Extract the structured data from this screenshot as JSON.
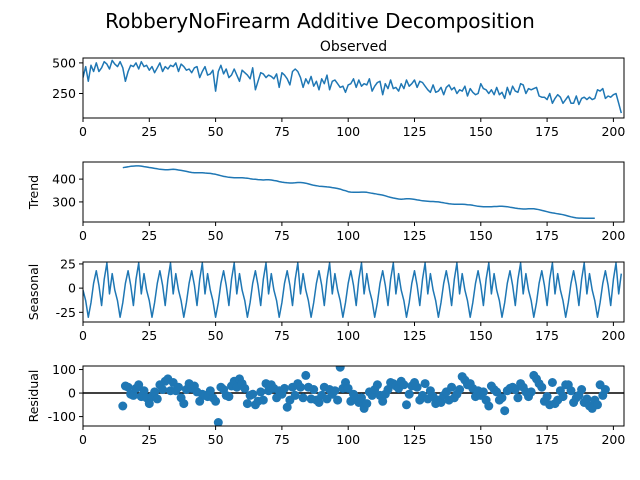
{
  "figure": {
    "title": "RobberyNoFirearm Additive Decomposition"
  },
  "chart_data": [
    {
      "type": "line",
      "title": "Observed",
      "ylabel": "",
      "xlim": [
        0,
        204
      ],
      "ylim": [
        50,
        540
      ],
      "xticks": [
        0,
        25,
        50,
        75,
        100,
        125,
        150,
        175,
        200
      ],
      "yticks": [
        250,
        500
      ],
      "x_start": 0,
      "values": [
        380,
        470,
        350,
        480,
        430,
        500,
        430,
        460,
        510,
        490,
        450,
        520,
        490,
        470,
        510,
        460,
        350,
        430,
        480,
        470,
        500,
        450,
        510,
        470,
        480,
        440,
        470,
        420,
        460,
        500,
        430,
        470,
        450,
        480,
        470,
        500,
        430,
        490,
        470,
        440,
        450,
        420,
        460,
        470,
        380,
        430,
        470,
        400,
        410,
        440,
        270,
        430,
        480,
        410,
        450,
        380,
        400,
        450,
        400,
        350,
        440,
        420,
        400,
        370,
        460,
        280,
        350,
        420,
        410,
        380,
        400,
        390,
        370,
        410,
        300,
        420,
        400,
        370,
        320,
        430,
        450,
        430,
        380,
        300,
        370,
        330,
        390,
        310,
        350,
        280,
        370,
        330,
        400,
        280,
        350,
        360,
        330,
        300,
        310,
        260,
        320,
        330,
        370,
        300,
        360,
        310,
        330,
        320,
        370,
        270,
        310,
        340,
        350,
        240,
        330,
        290,
        360,
        290,
        300,
        270,
        330,
        290,
        360,
        310,
        330,
        360,
        300,
        350,
        340,
        310,
        280,
        260,
        320,
        260,
        270,
        300,
        240,
        300,
        320,
        280,
        300,
        250,
        280,
        270,
        310,
        230,
        290,
        260,
        240,
        250,
        330,
        290,
        280,
        250,
        280,
        240,
        300,
        240,
        260,
        210,
        300,
        240,
        310,
        270,
        260,
        330,
        320,
        250,
        290,
        280,
        290,
        300,
        230,
        220,
        220,
        200,
        250,
        170,
        210,
        240,
        220,
        170,
        200,
        230,
        170,
        170,
        230,
        160,
        210,
        220,
        200,
        220,
        200,
        210,
        280,
        270,
        290,
        210,
        230,
        220,
        240,
        250,
        170,
        90
      ],
      "series": []
    },
    {
      "type": "line",
      "title": "",
      "ylabel": "Trend",
      "xlim": [
        0,
        204
      ],
      "ylim": [
        212,
        475
      ],
      "xticks": [
        0,
        25,
        50,
        75,
        100,
        125,
        150,
        175,
        200
      ],
      "yticks": [
        300,
        400
      ],
      "x_start": 15,
      "values": [
        450,
        452,
        454,
        456,
        457,
        458,
        458,
        457,
        455,
        453,
        451,
        449,
        447,
        445,
        443,
        442,
        441,
        441,
        442,
        443,
        442,
        440,
        438,
        436,
        434,
        431,
        429,
        428,
        428,
        428,
        428,
        427,
        426,
        425,
        423,
        421,
        418,
        415,
        412,
        410,
        408,
        407,
        406,
        406,
        406,
        406,
        405,
        404,
        402,
        400,
        399,
        398,
        397,
        396,
        397,
        397,
        396,
        394,
        392,
        389,
        387,
        385,
        384,
        383,
        383,
        384,
        385,
        385,
        384,
        382,
        379,
        376,
        373,
        371,
        369,
        368,
        367,
        366,
        365,
        363,
        361,
        359,
        356,
        352,
        349,
        345,
        343,
        342,
        342,
        342,
        343,
        343,
        342,
        340,
        338,
        336,
        334,
        332,
        330,
        327,
        323,
        320,
        317,
        315,
        313,
        312,
        313,
        314,
        314,
        313,
        311,
        309,
        307,
        305,
        304,
        303,
        302,
        302,
        301,
        300,
        298,
        296,
        294,
        292,
        291,
        290,
        290,
        290,
        290,
        289,
        288,
        287,
        285,
        283,
        281,
        280,
        279,
        279,
        279,
        279,
        280,
        280,
        281,
        281,
        280,
        279,
        277,
        275,
        273,
        271,
        270,
        269,
        269,
        270,
        270,
        270,
        268,
        266,
        263,
        260,
        257,
        254,
        252,
        250,
        248,
        246,
        244,
        241,
        238,
        235,
        232,
        230,
        229,
        229,
        228,
        228,
        228,
        228,
        228
      ],
      "series": []
    },
    {
      "type": "line",
      "title": "",
      "ylabel": "Seasonal",
      "xlim": [
        0,
        204
      ],
      "ylim": [
        -35,
        27
      ],
      "xticks": [
        0,
        25,
        50,
        75,
        100,
        125,
        150,
        175,
        200
      ],
      "yticks": [
        25,
        0,
        -25
      ],
      "x_start": 0,
      "period": 12,
      "pattern": [
        -2,
        -13,
        -30,
        -15,
        5,
        18,
        3,
        -18,
        9,
        26,
        -6,
        15
      ],
      "series": []
    },
    {
      "type": "scatter",
      "title": "",
      "ylabel": "Residual",
      "xlim": [
        0,
        204
      ],
      "ylim": [
        -140,
        115
      ],
      "xticks": [
        0,
        25,
        50,
        75,
        100,
        125,
        150,
        175,
        200
      ],
      "yticks": [
        100,
        0,
        -100
      ],
      "zero_line": true,
      "x_start": 15,
      "values": [
        -55,
        30,
        25,
        -5,
        -10,
        20,
        35,
        -15,
        10,
        -20,
        -45,
        -15,
        5,
        -25,
        35,
        15,
        50,
        60,
        10,
        45,
        10,
        25,
        -20,
        -45,
        15,
        40,
        20,
        30,
        5,
        -35,
        -5,
        -10,
        -15,
        10,
        -20,
        -35,
        -125,
        25,
        15,
        -10,
        -15,
        30,
        50,
        25,
        60,
        40,
        20,
        -45,
        -10,
        -5,
        -50,
        -35,
        5,
        -30,
        40,
        10,
        35,
        20,
        -20,
        10,
        -5,
        20,
        -60,
        -30,
        25,
        -10,
        40,
        25,
        -20,
        75,
        25,
        -25,
        15,
        -30,
        -40,
        -10,
        25,
        -25,
        15,
        -5,
        10,
        -30,
        110,
        20,
        45,
        20,
        -35,
        -5,
        -20,
        -40,
        -20,
        -65,
        -45,
        5,
        -10,
        15,
        35,
        -10,
        -35,
        -5,
        15,
        45,
        40,
        30,
        20,
        50,
        35,
        -50,
        -5,
        30,
        45,
        25,
        -30,
        -10,
        40,
        -25,
        10,
        -15,
        -45,
        -30,
        -40,
        -10,
        5,
        -30,
        25,
        -20,
        -5,
        15,
        70,
        55,
        35,
        40,
        20,
        -15,
        10,
        -10,
        5,
        -30,
        -55,
        30,
        15,
        5,
        -30,
        -20,
        -75,
        10,
        20,
        25,
        15,
        -20,
        40,
        25,
        5,
        -15,
        5,
        75,
        60,
        40,
        25,
        -35,
        -15,
        -50,
        45,
        -45,
        -30,
        10,
        -15,
        35,
        35,
        10,
        -40,
        -20,
        -10,
        15,
        -40,
        -25,
        -55,
        -65,
        -30,
        -50,
        35,
        -10,
        15
      ]
    }
  ],
  "colors": {
    "series": "#1f77b4",
    "axis": "#000000",
    "background": "#ffffff"
  }
}
